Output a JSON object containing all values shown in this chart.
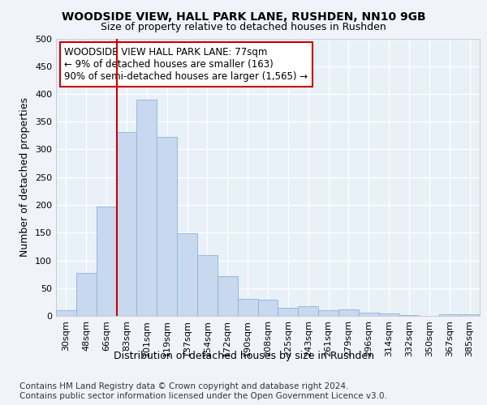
{
  "title1": "WOODSIDE VIEW, HALL PARK LANE, RUSHDEN, NN10 9GB",
  "title2": "Size of property relative to detached houses in Rushden",
  "xlabel": "Distribution of detached houses by size in Rushden",
  "ylabel": "Number of detached properties",
  "categories": [
    "30sqm",
    "48sqm",
    "66sqm",
    "83sqm",
    "101sqm",
    "119sqm",
    "137sqm",
    "154sqm",
    "172sqm",
    "190sqm",
    "208sqm",
    "225sqm",
    "243sqm",
    "261sqm",
    "279sqm",
    "296sqm",
    "314sqm",
    "332sqm",
    "350sqm",
    "367sqm",
    "385sqm"
  ],
  "values": [
    10,
    78,
    197,
    332,
    390,
    322,
    149,
    110,
    72,
    30,
    29,
    15,
    18,
    10,
    12,
    6,
    5,
    1,
    0,
    3,
    3
  ],
  "bar_color": "#c8d8ee",
  "bar_edge_color": "#8ab4d8",
  "vline_x_index": 3,
  "vline_color": "#cc0000",
  "annotation_text": "WOODSIDE VIEW HALL PARK LANE: 77sqm\n← 9% of detached houses are smaller (163)\n90% of semi-detached houses are larger (1,565) →",
  "annotation_box_color": "#ffffff",
  "annotation_box_edge": "#cc0000",
  "footer1": "Contains HM Land Registry data © Crown copyright and database right 2024.",
  "footer2": "Contains public sector information licensed under the Open Government Licence v3.0.",
  "ylim": [
    0,
    500
  ],
  "yticks": [
    0,
    50,
    100,
    150,
    200,
    250,
    300,
    350,
    400,
    450,
    500
  ],
  "background_color": "#f0f4fa",
  "plot_bg_color": "#e8f0f8",
  "grid_color": "#ffffff",
  "title1_fontsize": 10,
  "title2_fontsize": 9,
  "xlabel_fontsize": 9,
  "ylabel_fontsize": 9,
  "tick_fontsize": 8,
  "annotation_fontsize": 8.5,
  "footer_fontsize": 7.5
}
